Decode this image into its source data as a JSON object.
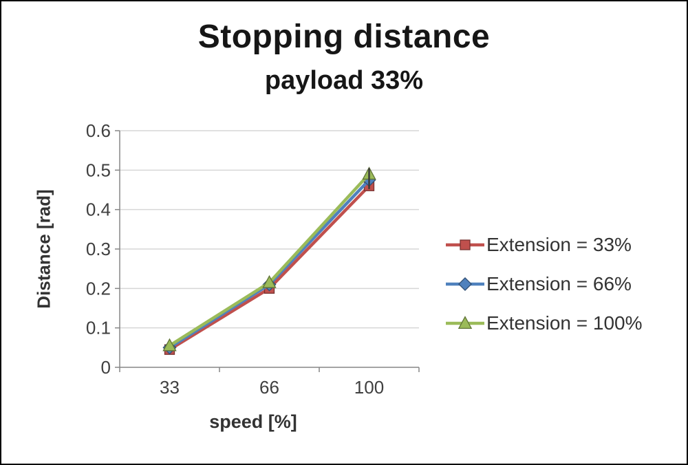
{
  "window": {
    "background": "#ffffff",
    "border_color": "#000000"
  },
  "chart_data": {
    "type": "line",
    "title": "Stopping distance",
    "subtitle": "payload 33%",
    "xlabel": "speed [%]",
    "ylabel": "Distance [rad]",
    "categories": [
      "33",
      "66",
      "100"
    ],
    "series": [
      {
        "name": "Extension = 33%",
        "marker": "square",
        "color": "#c0504d",
        "values": [
          0.045,
          0.2,
          0.46
        ]
      },
      {
        "name": "Extension = 66%",
        "marker": "diamond",
        "color": "#4f81bd",
        "values": [
          0.05,
          0.21,
          0.475
        ]
      },
      {
        "name": "Extension = 100%",
        "marker": "triangle",
        "color": "#9bbb59",
        "values": [
          0.055,
          0.215,
          0.49
        ]
      }
    ],
    "ylim": [
      0,
      0.6
    ],
    "ytick_labels": [
      "0",
      "0.1",
      "0.2",
      "0.3",
      "0.4",
      "0.5",
      "0.6"
    ],
    "grid": true,
    "legend_position": "right",
    "high_low_line": {
      "category_index": 2,
      "from": 0.452,
      "to": 0.505
    },
    "colors": {
      "grid": "#d6d6d6",
      "axis": "#868686",
      "tick_text": "#3f3f3f",
      "title_text": "#161616"
    }
  }
}
